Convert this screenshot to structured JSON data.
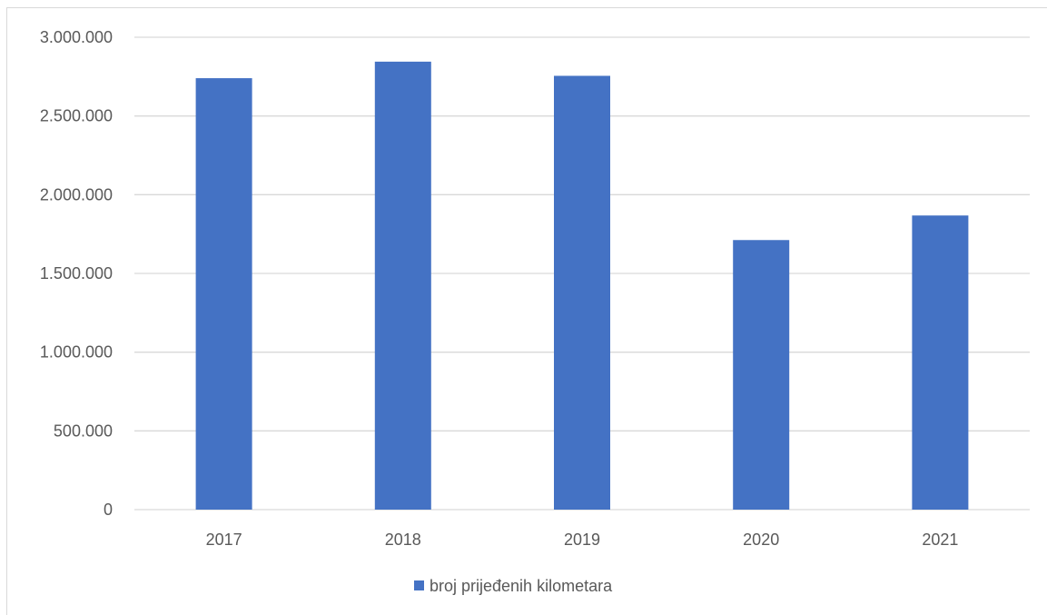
{
  "chart_data": {
    "type": "bar",
    "title": "",
    "xlabel": "",
    "ylabel": "",
    "categories": [
      "2017",
      "2018",
      "2019",
      "2020",
      "2021"
    ],
    "series": [
      {
        "name": "broj prijeđenih kilometara",
        "values": [
          2740000,
          2845000,
          2755000,
          1712000,
          1868000
        ],
        "color": "#4472C4"
      }
    ],
    "ylim": [
      0,
      3000000
    ],
    "yticks": [
      0,
      500000,
      1000000,
      1500000,
      2000000,
      2500000,
      3000000
    ],
    "ytick_labels": [
      "0",
      "500.000",
      "1.000.000",
      "1.500.000",
      "2.000.000",
      "2.500.000",
      "3.000.000"
    ],
    "grid": true,
    "legend": "bottom"
  }
}
